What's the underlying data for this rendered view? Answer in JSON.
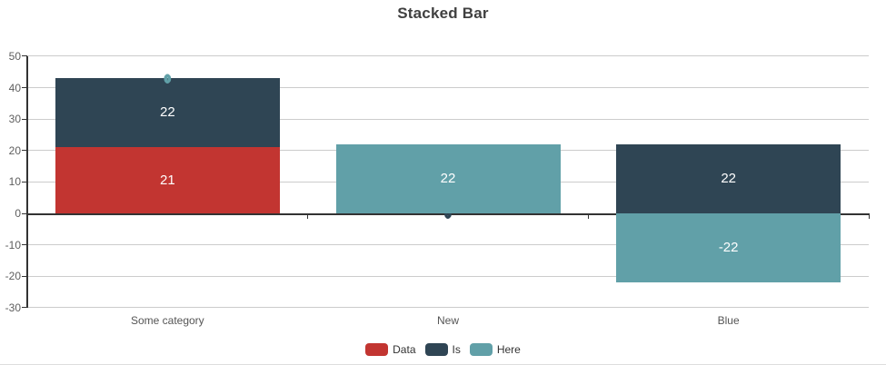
{
  "title": "Stacked Bar",
  "chart_data": {
    "type": "bar",
    "stacked": true,
    "title": "Stacked Bar",
    "xlabel": "",
    "ylabel": "",
    "categories": [
      "Some category",
      "New",
      "Blue"
    ],
    "series": [
      {
        "name": "Data",
        "color": "#c23531",
        "values": [
          21,
          0,
          0
        ],
        "labels": [
          "21",
          null,
          null
        ]
      },
      {
        "name": "Is",
        "color": "#2f4554",
        "values": [
          22,
          0,
          22
        ],
        "labels": [
          "22",
          "0",
          "22"
        ]
      },
      {
        "name": "Here",
        "color": "#61a0a8",
        "values": [
          0,
          22,
          -22
        ],
        "labels": [
          "0",
          "22",
          "-22"
        ]
      }
    ],
    "yticks": [
      50,
      40,
      30,
      20,
      10,
      0,
      -10,
      -20,
      -30
    ],
    "ylim": [
      -30,
      50
    ],
    "grid": true,
    "legend_position": "bottom",
    "label_color_inside": "#ffffff"
  },
  "colors": {
    "background": "#ffffff",
    "title_text": "#404040",
    "axis_line": "#333333",
    "gridline": "#cccccc",
    "axis_label_text": "#555555",
    "legend_text": "#333333"
  }
}
